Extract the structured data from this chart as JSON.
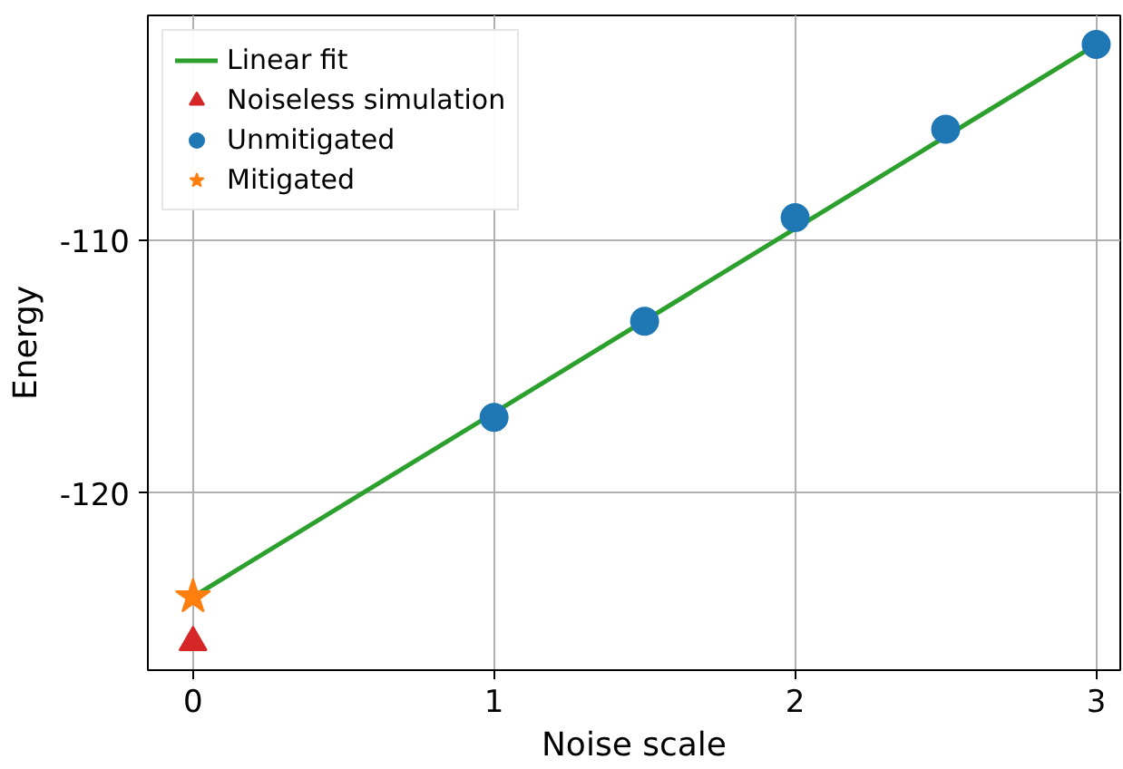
{
  "chart_data": {
    "type": "scatter",
    "xlabel": "Noise scale",
    "ylabel": "Energy",
    "xlim": [
      -0.15,
      3.08
    ],
    "ylim": [
      -127.0,
      -101.1
    ],
    "xticks": [
      0,
      1,
      2,
      3
    ],
    "yticks": [
      -120,
      -110
    ],
    "grid": true,
    "legend": "top left",
    "series": [
      {
        "name": "Linear fit",
        "type": "line",
        "color": "#2ca02c",
        "x": [
          0,
          3
        ],
        "values": [
          -124.1,
          -102.25
        ]
      },
      {
        "name": "Noiseless simulation",
        "color": "#d62728",
        "marker": "triangle",
        "x": [
          0
        ],
        "values": [
          -125.9
        ]
      },
      {
        "name": "Unmitigated",
        "color": "#1f77b4",
        "marker": "circle",
        "x": [
          1,
          1.5,
          2,
          2.5,
          3
        ],
        "values": [
          -117.0,
          -113.2,
          -109.1,
          -105.6,
          -102.25
        ]
      },
      {
        "name": "Mitigated",
        "color": "#ff7f0e",
        "marker": "star",
        "x": [
          0
        ],
        "values": [
          -124.1
        ]
      }
    ]
  }
}
